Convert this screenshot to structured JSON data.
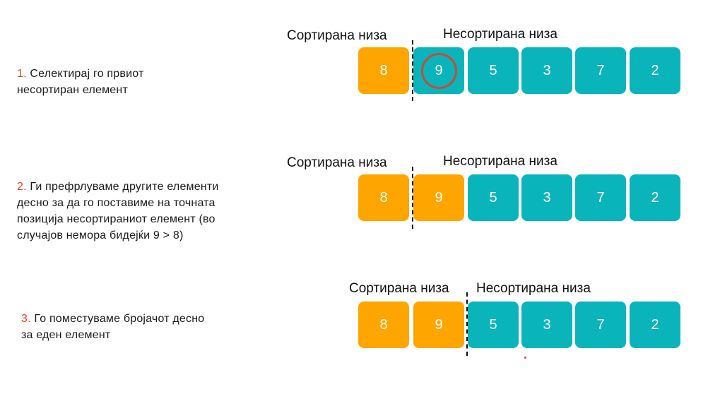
{
  "steps": [
    {
      "number": "1.",
      "lines": [
        "Селектирај го првиот",
        "несортиран елемент"
      ],
      "sorted_label": "Сортирана низа",
      "unsorted_label": "Несортирана низа",
      "sorted_values": [
        "8"
      ],
      "unsorted_values": [
        "9",
        "5",
        "3",
        "7",
        "2"
      ],
      "highlighted_value": "9"
    },
    {
      "number": "2.",
      "lines": [
        "Ги префрлуваме другите елементи",
        "десно за да го поставиме на точната",
        "позиција несортираниот елемент (во",
        "случајов немора бидејќи 9 > 8)"
      ],
      "sorted_label": "Сортирана низа",
      "unsorted_label": "Несортирана низа",
      "sorted_values": [
        "8"
      ],
      "unsorted_values": [
        "9",
        "5",
        "3",
        "7",
        "2"
      ],
      "moving_value": "9"
    },
    {
      "number": "3.",
      "lines": [
        "Го поместуваме бројачот десно",
        "за еден елемент"
      ],
      "sorted_label": "Сортирана низа",
      "unsorted_label": "Несортирана низа",
      "sorted_values": [
        "8",
        "9"
      ],
      "unsorted_values": [
        "5",
        "3",
        "7",
        "2"
      ]
    }
  ],
  "colors": {
    "sorted": "#ffa500",
    "unsorted": "#09b5bb",
    "highlight_circle": "#c84a3a",
    "step_number": "#e0452c"
  }
}
